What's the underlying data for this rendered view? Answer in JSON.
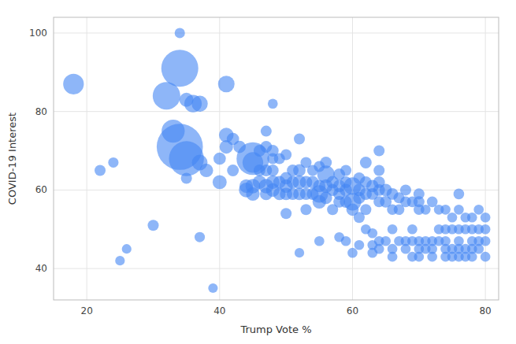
{
  "chart_data": {
    "type": "scatter",
    "xlabel": "Trump Vote %",
    "ylabel": "COVID-19 Interest",
    "color": "#4285f4",
    "grid": true,
    "xlim": [
      15,
      82
    ],
    "ylim": [
      32,
      104
    ],
    "xticks": [
      20,
      40,
      60,
      80
    ],
    "yticks": [
      40,
      60,
      80,
      100
    ],
    "x": [
      18,
      34,
      34,
      32,
      35,
      36,
      37,
      41,
      33,
      34,
      35,
      37,
      38,
      35,
      22,
      24,
      30,
      25,
      26,
      37,
      39,
      48,
      40,
      40,
      41,
      41,
      42,
      42,
      43,
      44,
      44,
      45,
      45,
      45,
      45,
      46,
      46,
      46,
      47,
      47,
      47,
      47,
      47,
      48,
      48,
      48,
      48,
      48,
      49,
      49,
      49,
      50,
      50,
      50,
      50,
      50,
      51,
      51,
      51,
      52,
      52,
      52,
      52,
      52,
      53,
      53,
      53,
      53,
      54,
      54,
      54,
      55,
      55,
      55,
      55,
      55,
      56,
      56,
      56,
      56,
      57,
      57,
      57,
      58,
      58,
      58,
      58,
      58,
      59,
      59,
      59,
      59,
      59,
      60,
      60,
      60,
      60,
      61,
      61,
      61,
      61,
      61,
      62,
      62,
      62,
      62,
      62,
      63,
      63,
      63,
      63,
      63,
      64,
      64,
      64,
      64,
      64,
      64,
      64,
      65,
      65,
      65,
      66,
      66,
      66,
      66,
      66,
      67,
      67,
      67,
      68,
      68,
      68,
      68,
      69,
      69,
      69,
      69,
      70,
      70,
      70,
      70,
      70,
      70,
      71,
      71,
      71,
      72,
      72,
      72,
      72,
      73,
      73,
      73,
      74,
      74,
      74,
      74,
      74,
      75,
      75,
      75,
      75,
      76,
      76,
      76,
      76,
      76,
      76,
      77,
      77,
      77,
      77,
      78,
      78,
      78,
      78,
      78,
      79,
      79,
      79,
      79,
      80,
      80,
      80,
      80
    ],
    "values": [
      87,
      100,
      91,
      84,
      83,
      82,
      82,
      87,
      75,
      71,
      68,
      67,
      65,
      63,
      65,
      67,
      51,
      42,
      45,
      48,
      35,
      82,
      62,
      68,
      74,
      71,
      73,
      65,
      71,
      60,
      61,
      68,
      67,
      61,
      59,
      70,
      65,
      62,
      75,
      71,
      65,
      61,
      59,
      70,
      68,
      65,
      62,
      60,
      68,
      62,
      59,
      69,
      63,
      61,
      59,
      54,
      65,
      62,
      59,
      73,
      65,
      62,
      59,
      44,
      67,
      62,
      59,
      55,
      65,
      62,
      59,
      66,
      61,
      59,
      57,
      47,
      67,
      64,
      61,
      58,
      62,
      60,
      55,
      64,
      61,
      59,
      57,
      48,
      65,
      62,
      60,
      57,
      47,
      61,
      57,
      55,
      44,
      63,
      60,
      58,
      53,
      46,
      67,
      62,
      59,
      55,
      50,
      61,
      59,
      49,
      46,
      44,
      70,
      65,
      62,
      60,
      57,
      47,
      45,
      60,
      57,
      47,
      59,
      55,
      50,
      45,
      43,
      58,
      55,
      47,
      60,
      57,
      47,
      45,
      57,
      50,
      47,
      43,
      59,
      57,
      55,
      47,
      45,
      43,
      55,
      47,
      45,
      57,
      47,
      45,
      43,
      55,
      50,
      47,
      55,
      50,
      47,
      45,
      43,
      53,
      50,
      45,
      43,
      59,
      55,
      50,
      47,
      45,
      43,
      53,
      50,
      45,
      43,
      53,
      50,
      47,
      45,
      43,
      55,
      50,
      47,
      45,
      53,
      50,
      47,
      43
    ],
    "sizes": [
      280,
      70,
      900,
      500,
      130,
      200,
      170,
      180,
      350,
      1400,
      800,
      160,
      120,
      80,
      80,
      70,
      80,
      60,
      60,
      70,
      60,
      65,
      130,
      100,
      140,
      120,
      100,
      90,
      100,
      140,
      120,
      700,
      280,
      140,
      120,
      90,
      90,
      120,
      80,
      90,
      90,
      140,
      100,
      90,
      80,
      90,
      120,
      120,
      80,
      100,
      100,
      80,
      100,
      120,
      100,
      80,
      90,
      100,
      95,
      80,
      100,
      120,
      100,
      60,
      80,
      100,
      95,
      80,
      80,
      100,
      95,
      80,
      100,
      200,
      120,
      65,
      90,
      200,
      120,
      100,
      100,
      95,
      80,
      90,
      100,
      95,
      90,
      65,
      80,
      90,
      100,
      95,
      65,
      200,
      200,
      100,
      65,
      90,
      100,
      95,
      80,
      65,
      90,
      90,
      95,
      80,
      65,
      100,
      90,
      65,
      65,
      65,
      80,
      80,
      90,
      90,
      80,
      65,
      65,
      100,
      90,
      65,
      90,
      75,
      65,
      65,
      65,
      80,
      75,
      65,
      80,
      75,
      65,
      65,
      75,
      65,
      65,
      65,
      80,
      80,
      75,
      65,
      65,
      65,
      65,
      65,
      65,
      75,
      65,
      65,
      65,
      65,
      65,
      65,
      65,
      65,
      65,
      65,
      65,
      65,
      65,
      65,
      65,
      75,
      65,
      65,
      65,
      65,
      65,
      65,
      65,
      65,
      65,
      65,
      65,
      65,
      65,
      65,
      65,
      65,
      65,
      65,
      65,
      65,
      65,
      65
    ]
  }
}
